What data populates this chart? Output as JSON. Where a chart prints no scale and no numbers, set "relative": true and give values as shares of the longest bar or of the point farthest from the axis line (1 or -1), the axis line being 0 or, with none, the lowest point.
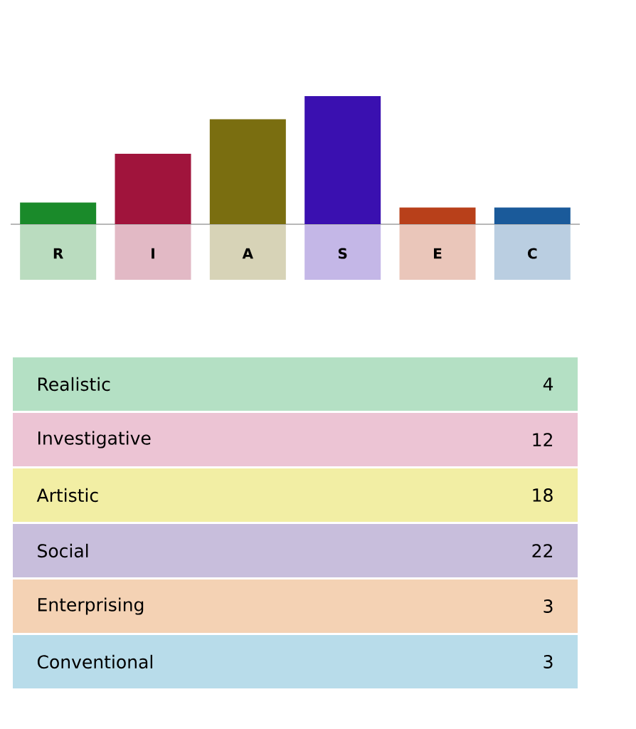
{
  "chart_data": [
    {
      "type": "bar",
      "relative": true,
      "categories": [
        "R",
        "I",
        "A",
        "S",
        "E",
        "C"
      ],
      "values": [
        0.17,
        0.55,
        0.82,
        1,
        0.13,
        0.13
      ],
      "colors": [
        "#1a8a2a",
        "#a0143c",
        "#7a6e10",
        "#3a10b0",
        "#b8401a",
        "#1a5a9a"
      ]
    },
    {
      "type": "other",
      "categories": [
        "Realistic",
        "Investigative",
        "Artistic",
        "Social",
        "Enterprising",
        "Conventional"
      ],
      "values": [
        4,
        12,
        18,
        22,
        3,
        3
      ],
      "colors": [
        "#b4e0c4",
        "#ecc4d4",
        "#f2eea4",
        "#c8bedc",
        "#f4d2b4",
        "#b8dcea"
      ],
      "data_labels": true
    }
  ]
}
